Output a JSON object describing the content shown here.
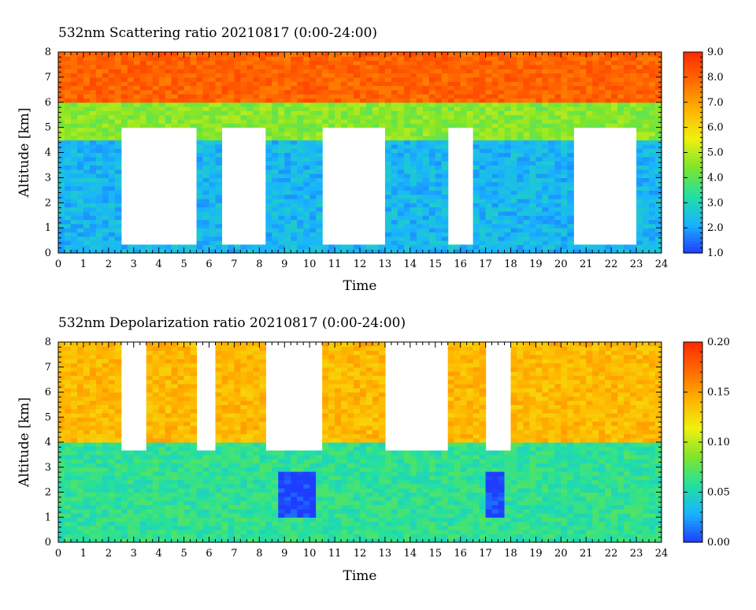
{
  "chart_data": [
    {
      "type": "heatmap",
      "title": "532nm Scattering ratio  20210817 (0:00-24:00)",
      "xlabel": "Time",
      "ylabel": "Altitude [km]",
      "xlim": [
        0,
        24
      ],
      "ylim": [
        0,
        8
      ],
      "x_ticks": [
        "0",
        "1",
        "2",
        "3",
        "4",
        "5",
        "6",
        "7",
        "8",
        "9",
        "10",
        "11",
        "12",
        "13",
        "14",
        "15",
        "16",
        "17",
        "18",
        "19",
        "20",
        "21",
        "22",
        "23",
        "24"
      ],
      "y_ticks": [
        "0",
        "1",
        "2",
        "3",
        "4",
        "5",
        "6",
        "7",
        "8"
      ],
      "colorbar": {
        "range": [
          1.0,
          9.0
        ],
        "ticks": [
          "1.0",
          "2.0",
          "3.0",
          "4.0",
          "5.0",
          "6.0",
          "7.0",
          "8.0",
          "9.0"
        ],
        "colormap": [
          "#1f3dff",
          "#19b3ff",
          "#23e0a0",
          "#7fe52b",
          "#f0f010",
          "#ffb400",
          "#ff6a00",
          "#ff2a00"
        ]
      },
      "features": [
        {
          "desc": "high signal layer above",
          "alt_range_km": [
            6.0,
            8.0
          ],
          "value": 8.0
        },
        {
          "desc": "mid layer",
          "alt_range_km": [
            4.5,
            6.0
          ],
          "value": 4.5
        },
        {
          "desc": "low blue layer",
          "alt_range_km": [
            0.5,
            4.5
          ],
          "value": 2.3
        },
        {
          "desc": "cloud gaps (no data)",
          "time_ranges_h": [
            [
              2.5,
              5.5
            ],
            [
              6.5,
              8.2
            ],
            [
              10.5,
              13.0
            ],
            [
              15.5,
              16.5
            ],
            [
              20.5,
              23.0
            ]
          ],
          "alt_range_km": [
            0.3,
            5.0
          ]
        }
      ]
    },
    {
      "type": "heatmap",
      "title": "532nm Depolarization ratio  20210817 (0:00-24:00)",
      "xlabel": "Time",
      "ylabel": "Altitude [km]",
      "xlim": [
        0,
        24
      ],
      "ylim": [
        0,
        8
      ],
      "x_ticks": [
        "0",
        "1",
        "2",
        "3",
        "4",
        "5",
        "6",
        "7",
        "8",
        "9",
        "10",
        "11",
        "12",
        "13",
        "14",
        "15",
        "16",
        "17",
        "18",
        "19",
        "20",
        "21",
        "22",
        "23",
        "24"
      ],
      "y_ticks": [
        "0",
        "1",
        "2",
        "3",
        "4",
        "5",
        "6",
        "7",
        "8"
      ],
      "colorbar": {
        "range": [
          0.0,
          0.2
        ],
        "ticks": [
          "0.00",
          "0.05",
          "0.10",
          "0.15",
          "0.20"
        ],
        "colormap": [
          "#1f3dff",
          "#19b3ff",
          "#23e0a0",
          "#7fe52b",
          "#f0f010",
          "#ffb400",
          "#ff6a00",
          "#ff2a00"
        ]
      },
      "features": [
        {
          "desc": "upper orange/yellow",
          "alt_range_km": [
            4.0,
            8.0
          ],
          "value": 0.14
        },
        {
          "desc": "lower green/cyan",
          "alt_range_km": [
            0.0,
            4.0
          ],
          "value": 0.06
        },
        {
          "desc": "low depolarization patches",
          "time_ranges_h": [
            [
              8.7,
              10.2
            ],
            [
              16.9,
              17.7
            ]
          ],
          "alt_range_km": [
            1.0,
            2.9
          ],
          "value": 0.0
        },
        {
          "desc": "no data above",
          "time_ranges_h": [
            [
              2.5,
              3.5
            ],
            [
              5.5,
              6.3
            ],
            [
              8.2,
              10.5
            ],
            [
              13.0,
              15.5
            ],
            [
              16.9,
              18.0
            ]
          ],
          "alt_range_km": [
            3.6,
            8.0
          ]
        }
      ]
    }
  ]
}
